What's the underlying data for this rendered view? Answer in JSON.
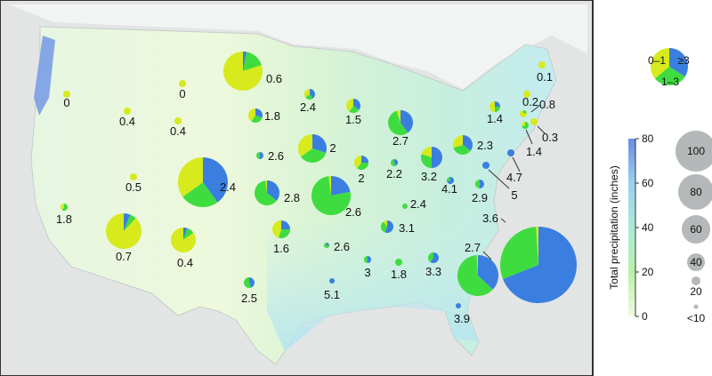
{
  "colors": {
    "low": "#d6ea1c",
    "mid": "#3fdc3f",
    "high": "#3a7fe0",
    "legend_circle": "#b4b8b8",
    "ocean": "#e4e6e6",
    "land_other": "#f3f4f4"
  },
  "legend": {
    "pie_labels": [
      "0–1",
      "1–3",
      "≥3"
    ],
    "colorbar_title": "Total precipitation (inches)",
    "colorbar_ticks": [
      "80",
      "60",
      "40",
      "20",
      "0"
    ],
    "size_labels": [
      "100",
      "80",
      "60",
      "40",
      "20",
      "<10"
    ]
  },
  "pies": [
    {
      "label": "0",
      "shares": [
        1,
        0,
        0
      ]
    },
    {
      "label": "0.4",
      "shares": [
        1,
        0,
        0
      ]
    },
    {
      "label": "0",
      "shares": [
        1,
        0,
        0
      ]
    },
    {
      "label": "0.4",
      "shares": [
        1,
        0,
        0
      ]
    },
    {
      "label": "0.6",
      "shares": [
        0.8,
        0.17,
        0.03
      ]
    },
    {
      "label": "2.4",
      "shares": [
        0.35,
        0.25,
        0.4
      ]
    },
    {
      "label": "1.8",
      "shares": [
        0.4,
        0.3,
        0.3
      ]
    },
    {
      "label": "2.6",
      "shares": [
        0,
        0.5,
        0.5
      ]
    },
    {
      "label": "2",
      "shares": [
        0.35,
        0.35,
        0.3
      ]
    },
    {
      "label": "1.5",
      "shares": [
        0.4,
        0.25,
        0.35
      ]
    },
    {
      "label": "2.7",
      "shares": [
        0.05,
        0.55,
        0.4
      ]
    },
    {
      "label": "0.5",
      "shares": [
        1,
        0,
        0
      ]
    },
    {
      "label": "2.4",
      "shares": [
        0.35,
        0.25,
        0.4
      ]
    },
    {
      "label": "2.8",
      "shares": [
        0.02,
        0.62,
        0.36
      ]
    },
    {
      "label": "2.6",
      "shares": [
        0.02,
        0.76,
        0.22
      ]
    },
    {
      "label": "2",
      "shares": [
        0.4,
        0.35,
        0.25
      ]
    },
    {
      "label": "2.2",
      "shares": [
        0,
        0.6,
        0.4
      ]
    },
    {
      "label": "3.2",
      "shares": [
        0.2,
        0.3,
        0.5
      ]
    },
    {
      "label": "2.3",
      "shares": [
        0.3,
        0.35,
        0.35
      ]
    },
    {
      "label": "1.4",
      "shares": [
        0.5,
        0.25,
        0.25
      ]
    },
    {
      "label": "0.1",
      "shares": [
        1,
        0,
        0
      ]
    },
    {
      "label": "0.2",
      "shares": [
        1,
        0,
        0
      ]
    },
    {
      "label": "0.8",
      "shares": [
        0.8,
        0.2,
        0
      ]
    },
    {
      "label": "0.3",
      "shares": [
        1,
        0,
        0
      ]
    },
    {
      "label": "1.4",
      "shares": [
        0.3,
        0.7,
        0
      ]
    },
    {
      "label": "4.7",
      "shares": [
        0,
        0,
        1
      ]
    },
    {
      "label": "5",
      "shares": [
        0,
        0,
        1
      ]
    },
    {
      "label": "4.1",
      "shares": [
        0,
        0.3,
        0.7
      ]
    },
    {
      "label": "2.9",
      "shares": [
        0,
        0.5,
        0.5
      ]
    },
    {
      "label": "2.4",
      "shares": [
        0,
        1,
        0
      ]
    },
    {
      "label": "3.1",
      "shares": [
        0.1,
        0.35,
        0.55
      ]
    },
    {
      "label": "2.6",
      "shares": [
        0,
        0.7,
        0.3
      ]
    },
    {
      "label": "1.6",
      "shares": [
        0.45,
        0.3,
        0.25
      ]
    },
    {
      "label": "2.5",
      "shares": [
        0,
        0.55,
        0.45
      ]
    },
    {
      "label": "5.1",
      "shares": [
        0,
        0,
        1
      ]
    },
    {
      "label": "3",
      "shares": [
        0,
        0.5,
        0.5
      ]
    },
    {
      "label": "1.8",
      "shares": [
        0,
        1,
        0
      ]
    },
    {
      "label": "3.3",
      "shares": [
        0,
        0.4,
        0.6
      ]
    },
    {
      "label": "3.6",
      "shares": [
        0.01,
        0.3,
        0.69
      ]
    },
    {
      "label": "2.7",
      "shares": [
        0.01,
        0.62,
        0.37
      ]
    },
    {
      "label": "3.9",
      "shares": [
        0,
        0,
        1
      ]
    },
    {
      "label": "0.7",
      "shares": [
        0.88,
        0.06,
        0.06
      ]
    },
    {
      "label": "0.4",
      "shares": [
        0.85,
        0.1,
        0.05
      ]
    },
    {
      "label": "1.8",
      "shares": [
        0.4,
        0.6,
        0
      ]
    }
  ]
}
